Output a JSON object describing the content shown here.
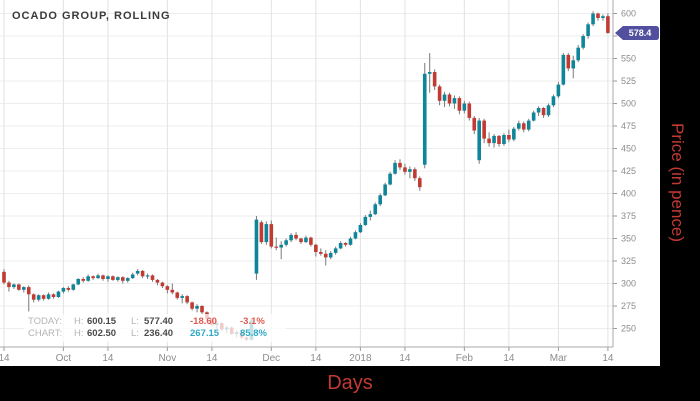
{
  "title": "OCADO GROUP, ROLLING",
  "axis_titles": {
    "x": "Days",
    "y": "Price (in pence)",
    "color": "#c23b33"
  },
  "price_marker": {
    "value": "578.4",
    "color": "#524f9e",
    "text_color": "#ffffff"
  },
  "legend": {
    "rows": [
      {
        "name": "TODAY:",
        "h_label": "H:",
        "high": "600.15",
        "l_label": "L:",
        "low": "577.40",
        "change": "-18.60",
        "change_pct": "-3.1%",
        "direction": "neg"
      },
      {
        "name": "CHART:",
        "h_label": "H:",
        "high": "602.50",
        "l_label": "L:",
        "low": "236.40",
        "change": "267.15",
        "change_pct": "85.8%",
        "direction": "pos"
      }
    ]
  },
  "chart_data": {
    "type": "candlestick",
    "title": "OCADO GROUP, ROLLING",
    "xlabel": "Days",
    "ylabel": "Price (in pence)",
    "y_ticks": [
      250,
      275,
      300,
      325,
      350,
      375,
      400,
      425,
      450,
      475,
      500,
      525,
      550,
      575,
      600
    ],
    "y_range": [
      236.4,
      615
    ],
    "grid": true,
    "x_ticks": [
      {
        "label": "14",
        "i": 0
      },
      {
        "label": "Oct",
        "i": 12
      },
      {
        "label": "14",
        "i": 21
      },
      {
        "label": "Nov",
        "i": 33
      },
      {
        "label": "14",
        "i": 42
      },
      {
        "label": "Dec",
        "i": 54
      },
      {
        "label": "14",
        "i": 63
      },
      {
        "label": "2018",
        "i": 72
      },
      {
        "label": "14",
        "i": 81
      },
      {
        "label": "Feb",
        "i": 93
      },
      {
        "label": "14",
        "i": 102
      },
      {
        "label": "Mar",
        "i": 112
      },
      {
        "label": "14",
        "i": 122
      }
    ],
    "colors": {
      "up": "#0f8599",
      "down": "#c23b33",
      "wick": "#7a7a7a"
    },
    "current_price": 578.4,
    "candles": [
      [
        313,
        316,
        299,
        301
      ],
      [
        301,
        303,
        291,
        296
      ],
      [
        296,
        300,
        294,
        299
      ],
      [
        299,
        300,
        292,
        293
      ],
      [
        293,
        297,
        290,
        296
      ],
      [
        296,
        298,
        269,
        288
      ],
      [
        288,
        289,
        279,
        282
      ],
      [
        282,
        288,
        280,
        287
      ],
      [
        287,
        288,
        281,
        283
      ],
      [
        283,
        290,
        282,
        288
      ],
      [
        288,
        289,
        283,
        285
      ],
      [
        285,
        292,
        284,
        291
      ],
      [
        291,
        296,
        289,
        295
      ],
      [
        295,
        297,
        291,
        293
      ],
      [
        293,
        300,
        292,
        299
      ],
      [
        299,
        306,
        298,
        305
      ],
      [
        305,
        307,
        301,
        303
      ],
      [
        303,
        310,
        302,
        308
      ],
      [
        308,
        309,
        304,
        306
      ],
      [
        306,
        311,
        305,
        309
      ],
      [
        309,
        310,
        303,
        305
      ],
      [
        305,
        309,
        302,
        308
      ],
      [
        308,
        309,
        303,
        304
      ],
      [
        304,
        308,
        302,
        307
      ],
      [
        307,
        308,
        300,
        303
      ],
      [
        303,
        307,
        301,
        306
      ],
      [
        306,
        312,
        305,
        310
      ],
      [
        311,
        316,
        309,
        314
      ],
      [
        314,
        315,
        306,
        308
      ],
      [
        308,
        311,
        305,
        309
      ],
      [
        309,
        310,
        302,
        304
      ],
      [
        304,
        305,
        298,
        301
      ],
      [
        301,
        302,
        295,
        297
      ],
      [
        297,
        298,
        289,
        293
      ],
      [
        293,
        300,
        288,
        290
      ],
      [
        290,
        291,
        282,
        284
      ],
      [
        284,
        288,
        278,
        286
      ],
      [
        286,
        287,
        277,
        279
      ],
      [
        279,
        280,
        270,
        272
      ],
      [
        272,
        277,
        268,
        275
      ],
      [
        275,
        276,
        266,
        268
      ],
      [
        268,
        269,
        259,
        261
      ],
      [
        261,
        262,
        252,
        254
      ],
      [
        254,
        258,
        250,
        256
      ],
      [
        256,
        257,
        247,
        249
      ],
      [
        249,
        253,
        245,
        251
      ],
      [
        251,
        252,
        243,
        244
      ],
      [
        244,
        248,
        240,
        246
      ],
      [
        246,
        247,
        238,
        240
      ],
      [
        240,
        241,
        236.4,
        237.5
      ],
      [
        237.5,
        261,
        236.8,
        259
      ],
      [
        311,
        375,
        304,
        371
      ],
      [
        368,
        370,
        344,
        346
      ],
      [
        346,
        369,
        343,
        366
      ],
      [
        366,
        370,
        339,
        341
      ],
      [
        341,
        351,
        337,
        340
      ],
      [
        340,
        347,
        327,
        343
      ],
      [
        343,
        350,
        341,
        348
      ],
      [
        348,
        356,
        346,
        354
      ],
      [
        354,
        357,
        348,
        350
      ],
      [
        350,
        351,
        344,
        346
      ],
      [
        346,
        353,
        345,
        351
      ],
      [
        351,
        352,
        341,
        343
      ],
      [
        343,
        344,
        330,
        335
      ],
      [
        335,
        339,
        331,
        333
      ],
      [
        333,
        337,
        320,
        329
      ],
      [
        329,
        336,
        327,
        334
      ],
      [
        334,
        341,
        332,
        339
      ],
      [
        339,
        347,
        338,
        345
      ],
      [
        345,
        346,
        341,
        343
      ],
      [
        343,
        352,
        342,
        350
      ],
      [
        350,
        359,
        349,
        357
      ],
      [
        357,
        367,
        356,
        365
      ],
      [
        365,
        376,
        364,
        374
      ],
      [
        374,
        381,
        370,
        377
      ],
      [
        377,
        390,
        376,
        388
      ],
      [
        388,
        400,
        386,
        398
      ],
      [
        398,
        412,
        397,
        410
      ],
      [
        410,
        424,
        409,
        422
      ],
      [
        422,
        437,
        421,
        434
      ],
      [
        434,
        438,
        426,
        429
      ],
      [
        429,
        433,
        421,
        424
      ],
      [
        424,
        430,
        417,
        427
      ],
      [
        427,
        429,
        414,
        417
      ],
      [
        417,
        419,
        403,
        407
      ],
      [
        432,
        545,
        428,
        533
      ],
      [
        533,
        556,
        512,
        535
      ],
      [
        535,
        538,
        515,
        519
      ],
      [
        519,
        521,
        498,
        503
      ],
      [
        503,
        513,
        496,
        510
      ],
      [
        510,
        512,
        497,
        500
      ],
      [
        500,
        509,
        494,
        506
      ],
      [
        506,
        508,
        488,
        492
      ],
      [
        492,
        503,
        489,
        500
      ],
      [
        500,
        502,
        481,
        484
      ],
      [
        484,
        486,
        466,
        470
      ],
      [
        437,
        484,
        433,
        481
      ],
      [
        481,
        483,
        456,
        461
      ],
      [
        461,
        468,
        452,
        456
      ],
      [
        456,
        466,
        451,
        464
      ],
      [
        464,
        465,
        452,
        455
      ],
      [
        455,
        467,
        453,
        465
      ],
      [
        465,
        471,
        457,
        460
      ],
      [
        460,
        474,
        458,
        472
      ],
      [
        472,
        481,
        470,
        478
      ],
      [
        478,
        480,
        468,
        471
      ],
      [
        471,
        483,
        469,
        481
      ],
      [
        481,
        492,
        480,
        490
      ],
      [
        490,
        497,
        486,
        495
      ],
      [
        495,
        496,
        484,
        487
      ],
      [
        487,
        500,
        485,
        498
      ],
      [
        498,
        510,
        496,
        508
      ],
      [
        508,
        524,
        506,
        521
      ],
      [
        521,
        556,
        520,
        554
      ],
      [
        554,
        556,
        536,
        539
      ],
      [
        539,
        553,
        528,
        548
      ],
      [
        548,
        565,
        546,
        562
      ],
      [
        562,
        577,
        560,
        575
      ],
      [
        575,
        590,
        572,
        588
      ],
      [
        588,
        602.5,
        586,
        600
      ],
      [
        600,
        601,
        592,
        595
      ],
      [
        595,
        599,
        592,
        597
      ],
      [
        597,
        600.15,
        577.4,
        578.4
      ]
    ]
  }
}
